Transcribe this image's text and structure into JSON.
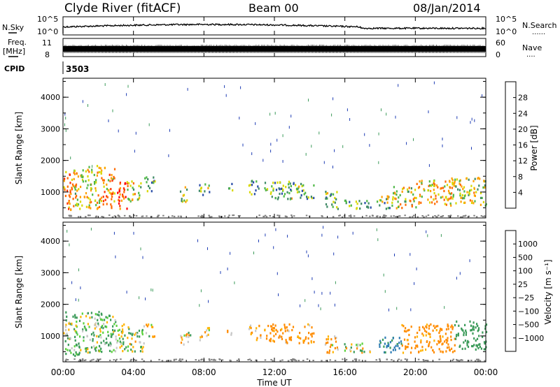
{
  "header": {
    "station": "Clyde River (fitACF)",
    "beam": "Beam 00",
    "date": "08/Jan/2014"
  },
  "top_panels": {
    "noise": {
      "left_label": "N.Sky",
      "left_ticks": [
        "10^5",
        "10^0"
      ],
      "right_label": "N.Search",
      "right_ticks": [
        "10^5",
        "10^0"
      ],
      "right_marker": "......"
    },
    "freq": {
      "left_label_1": "Freq.",
      "left_label_2": "[MHz]",
      "left_ticks": [
        "11",
        "8"
      ],
      "right_label": "Nave",
      "right_ticks": [
        "60",
        "0"
      ],
      "right_marker": "...."
    },
    "cpid": {
      "label": "CPID",
      "value": "3503"
    }
  },
  "colors": {
    "power_scale": [
      "#0000ff",
      "#2a4ea8",
      "#3f8a66",
      "#50b848",
      "#d8d800",
      "#ffa000",
      "#ff6a00",
      "#ff3000",
      "#ff0000"
    ],
    "velocity_scale": [
      "#ff0000",
      "#ff5a00",
      "#ff8c00",
      "#ffb400",
      "#c8c8c8",
      "#5ad23c",
      "#3c9b5a",
      "#2e7db4",
      "#1e3cb4"
    ],
    "grey": "#808080"
  },
  "power_colorbar": {
    "title": "Power [dB]",
    "ticks": [
      "28",
      "24",
      "20",
      "16",
      "12",
      "8",
      "4"
    ]
  },
  "velocity_colorbar": {
    "title": "Velocity [m s⁻¹]",
    "ticks": [
      "1000",
      "500",
      "100",
      "25",
      "−25",
      "−100",
      "−500",
      "−1000"
    ]
  },
  "chart_data": [
    {
      "type": "heatmap",
      "panel": "power",
      "ylabel": "Slant Range [km]",
      "xlim_hours": [
        0,
        24
      ],
      "ylim": [
        180,
        4600
      ],
      "y_ticks": [
        1000,
        2000,
        3000,
        4000
      ],
      "colorbar": "Power [dB]",
      "clim": [
        0,
        32
      ],
      "scatter_regions": [
        {
          "t0": 0.0,
          "t1": 0.6,
          "r0": 400,
          "r1": 1700,
          "value": 22
        },
        {
          "t0": 0.6,
          "t1": 1.4,
          "r0": 500,
          "r1": 1800,
          "value": 16
        },
        {
          "t0": 1.4,
          "t1": 2.2,
          "r0": 500,
          "r1": 1900,
          "value": 18
        },
        {
          "t0": 2.2,
          "t1": 2.9,
          "r0": 500,
          "r1": 1800,
          "value": 20
        },
        {
          "t0": 3.0,
          "t1": 3.6,
          "r0": 500,
          "r1": 1500,
          "value": 26
        },
        {
          "t0": 3.6,
          "t1": 4.4,
          "r0": 700,
          "r1": 1400,
          "value": 17
        },
        {
          "t0": 4.6,
          "t1": 5.2,
          "r0": 1000,
          "r1": 1500,
          "value": 10
        },
        {
          "t0": 6.6,
          "t1": 7.1,
          "r0": 700,
          "r1": 1200,
          "value": 13
        },
        {
          "t0": 7.7,
          "t1": 8.3,
          "r0": 900,
          "r1": 1300,
          "value": 12
        },
        {
          "t0": 9.3,
          "t1": 9.6,
          "r0": 1000,
          "r1": 1300,
          "value": 11
        },
        {
          "t0": 10.5,
          "t1": 11.1,
          "r0": 900,
          "r1": 1400,
          "value": 12
        },
        {
          "t0": 11.4,
          "t1": 13.2,
          "r0": 800,
          "r1": 1400,
          "value": 11
        },
        {
          "t0": 13.2,
          "t1": 14.2,
          "r0": 800,
          "r1": 1300,
          "value": 11
        },
        {
          "t0": 14.8,
          "t1": 15.6,
          "r0": 500,
          "r1": 1100,
          "value": 13
        },
        {
          "t0": 15.9,
          "t1": 16.8,
          "r0": 500,
          "r1": 800,
          "value": 10
        },
        {
          "t0": 16.8,
          "t1": 17.6,
          "r0": 500,
          "r1": 750,
          "value": 11
        },
        {
          "t0": 17.8,
          "t1": 18.7,
          "r0": 500,
          "r1": 1000,
          "value": 13
        },
        {
          "t0": 18.7,
          "t1": 20.0,
          "r0": 500,
          "r1": 1200,
          "value": 17
        },
        {
          "t0": 20.0,
          "t1": 22.0,
          "r0": 600,
          "r1": 1400,
          "value": 18
        },
        {
          "t0": 22.0,
          "t1": 24.0,
          "r0": 600,
          "r1": 1500,
          "value": 15
        }
      ]
    },
    {
      "type": "heatmap",
      "panel": "velocity",
      "ylabel": "Slant Range [km]",
      "xlabel": "Time UT",
      "xlim_hours": [
        0,
        24
      ],
      "ylim": [
        180,
        4600
      ],
      "x_ticks": [
        "00:00",
        "04:00",
        "08:00",
        "12:00",
        "16:00",
        "20:00",
        "00:00"
      ],
      "y_ticks": [
        1000,
        2000,
        3000,
        4000
      ],
      "colorbar": "Velocity [m s⁻¹]",
      "scatter_regions": [
        {
          "t0": 0.0,
          "t1": 2.2,
          "r0": 400,
          "r1": 1800,
          "value": 100
        },
        {
          "t0": 2.2,
          "t1": 3.0,
          "r0": 500,
          "r1": 1700,
          "value": 150
        },
        {
          "t0": 3.0,
          "t1": 4.6,
          "r0": 500,
          "r1": 1400,
          "value": 80
        },
        {
          "t0": 4.6,
          "t1": 5.2,
          "r0": 1000,
          "r1": 1400,
          "value": -60
        },
        {
          "t0": 6.6,
          "t1": 7.2,
          "r0": 700,
          "r1": 1200,
          "value": -40
        },
        {
          "t0": 7.7,
          "t1": 8.3,
          "r0": 900,
          "r1": 1300,
          "value": -80
        },
        {
          "t0": 9.3,
          "t1": 9.6,
          "r0": 1000,
          "r1": 1300,
          "value": 30
        },
        {
          "t0": 10.5,
          "t1": 11.2,
          "r0": 900,
          "r1": 1400,
          "value": -150
        },
        {
          "t0": 11.4,
          "t1": 14.2,
          "r0": 800,
          "r1": 1400,
          "value": -200
        },
        {
          "t0": 14.8,
          "t1": 15.6,
          "r0": 500,
          "r1": 1100,
          "value": -150
        },
        {
          "t0": 15.9,
          "t1": 17.6,
          "r0": 500,
          "r1": 800,
          "value": 40
        },
        {
          "t0": 17.8,
          "t1": 19.2,
          "r0": 500,
          "r1": 1000,
          "value": 600
        },
        {
          "t0": 19.2,
          "t1": 22.2,
          "r0": 500,
          "r1": 1400,
          "value": -250
        },
        {
          "t0": 22.2,
          "t1": 24.0,
          "r0": 600,
          "r1": 1500,
          "value": 300
        }
      ]
    }
  ]
}
